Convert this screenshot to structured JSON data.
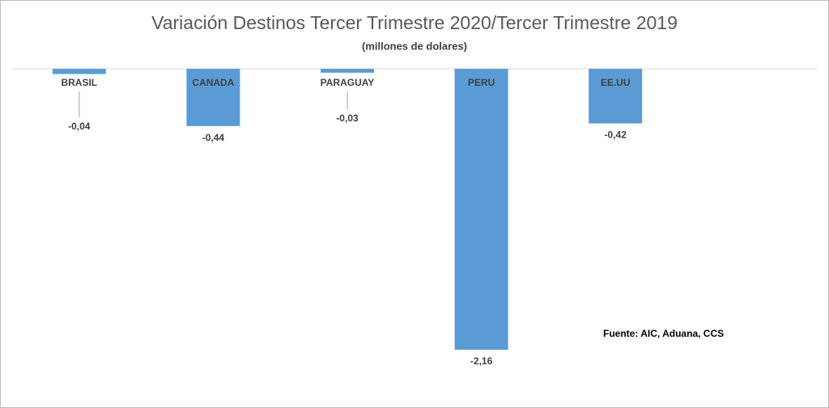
{
  "chart_data": {
    "type": "bar",
    "title": "Variación Destinos Tercer Trimestre 2020/Tercer Trimestre 2019",
    "subtitle": "(millones de dolares)",
    "categories": [
      "BRASIL",
      "CANADA",
      "PARAGUAY",
      "PERU",
      "EE.UU"
    ],
    "values": [
      -0.04,
      -0.44,
      -0.03,
      -2.16,
      -0.42
    ],
    "value_labels": [
      "-0,04",
      "-0,44",
      "-0,03",
      "-2,16",
      "-0,42"
    ],
    "color": "#5b9bd5",
    "annotation": "Fuente: AIC, Aduana, CCS"
  }
}
